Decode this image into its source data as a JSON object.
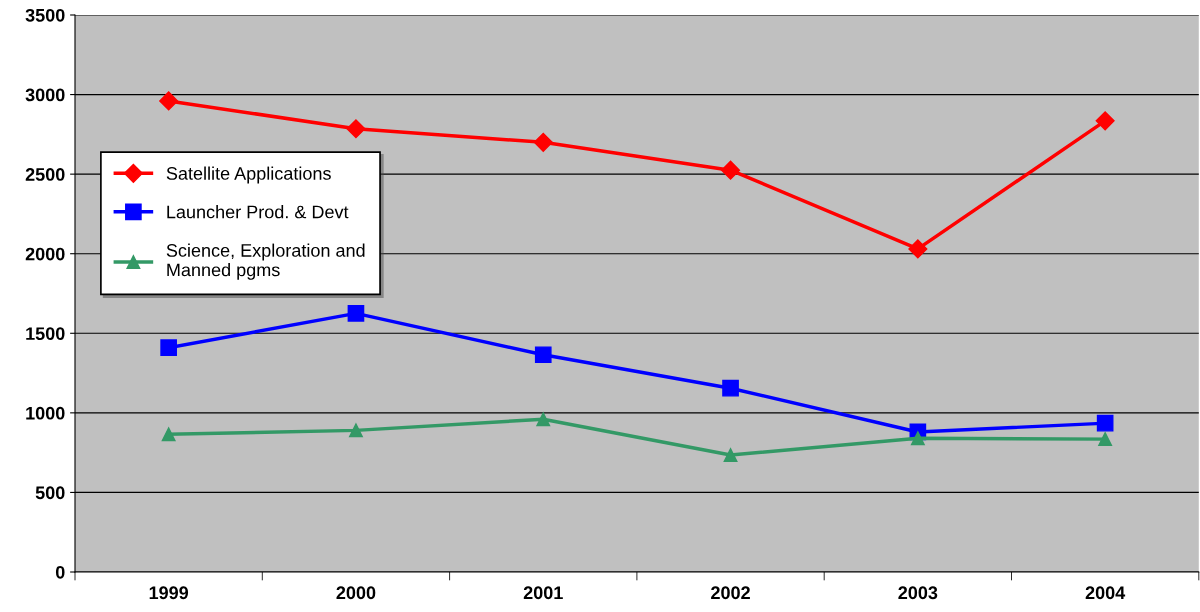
{
  "chart_data": {
    "type": "line",
    "categories": [
      "1999",
      "2000",
      "2001",
      "2002",
      "2003",
      "2004"
    ],
    "series": [
      {
        "name": "Satellite Applications",
        "color": "#ff0000",
        "marker": "diamond",
        "values": [
          2960,
          2785,
          2700,
          2525,
          2030,
          2835
        ]
      },
      {
        "name": "Launcher Prod. & Devt",
        "color": "#0000ff",
        "marker": "square",
        "values": [
          1410,
          1625,
          1365,
          1155,
          880,
          935
        ]
      },
      {
        "name": "Science, Exploration and\nManned pgms",
        "color": "#339966",
        "marker": "triangle",
        "values": [
          865,
          890,
          960,
          735,
          840,
          835
        ]
      }
    ],
    "ylim": [
      0,
      3500
    ],
    "yticks": [
      0,
      500,
      1000,
      1500,
      2000,
      2500,
      3000,
      3500
    ],
    "grid": "y",
    "legend": "top left",
    "line_style": "solid"
  }
}
